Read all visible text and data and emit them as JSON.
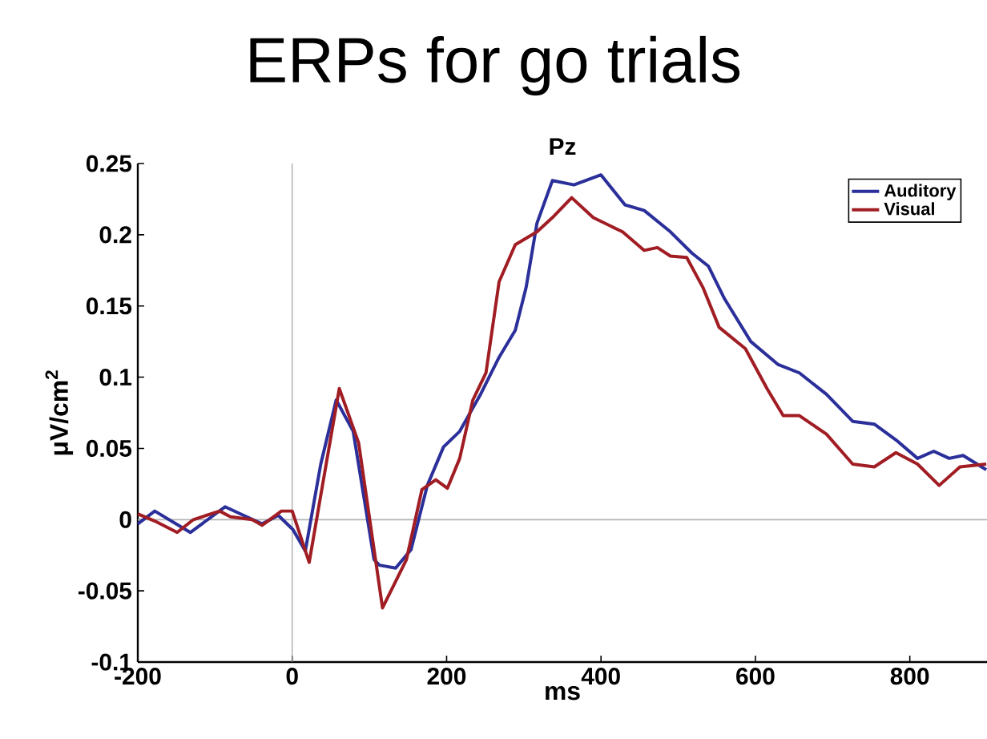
{
  "chart_data": {
    "type": "line",
    "title": "ERPs for go trials",
    "subtitle": "Pz",
    "xlabel": "ms",
    "ylabel": "μV/cm$^{2}$",
    "xlim": [
      -200,
      900
    ],
    "ylim": [
      -0.1,
      0.25
    ],
    "xticks": [
      -200,
      0,
      200,
      400,
      600,
      800
    ],
    "yticks": [
      -0.1,
      -0.05,
      0,
      0.05,
      0.1,
      0.15,
      0.2,
      0.25
    ],
    "legend": "top right",
    "grid": false,
    "marker": "none",
    "line_style": "solid",
    "ref_lines": [
      {
        "axis": "x",
        "value": 0,
        "color": "#a0a0a0"
      },
      {
        "axis": "y",
        "value": 0,
        "color": "#b4b4b4"
      }
    ],
    "series": [
      {
        "name": "Auditory",
        "color": "#2b2f9a",
        "x": [
          -200,
          -178,
          -132,
          -87,
          -59,
          -39,
          -18,
          1,
          17,
          37,
          57,
          79,
          106,
          113,
          134,
          154,
          175,
          196,
          217,
          244,
          268,
          289,
          303,
          317,
          337,
          365,
          400,
          431,
          456,
          490,
          518,
          539,
          560,
          594,
          629,
          657,
          692,
          726,
          754,
          782,
          810,
          831,
          851,
          869,
          899
        ],
        "values": [
          -0.003,
          0.006,
          -0.009,
          0.009,
          0.002,
          -0.003,
          0.003,
          -0.007,
          -0.022,
          0.039,
          0.084,
          0.062,
          -0.028,
          -0.032,
          -0.034,
          -0.021,
          0.024,
          0.051,
          0.062,
          0.088,
          0.114,
          0.133,
          0.163,
          0.208,
          0.238,
          0.235,
          0.242,
          0.221,
          0.217,
          0.202,
          0.187,
          0.178,
          0.155,
          0.125,
          0.109,
          0.103,
          0.088,
          0.069,
          0.067,
          0.056,
          0.043,
          0.048,
          0.043,
          0.045,
          0.035
        ]
      },
      {
        "name": "Visual",
        "color": "#a11d24",
        "x": [
          -200,
          -178,
          -149,
          -128,
          -94,
          -80,
          -52,
          -39,
          -14,
          0,
          22,
          44,
          61,
          86,
          117,
          148,
          168,
          186,
          201,
          217,
          234,
          251,
          268,
          289,
          317,
          337,
          362,
          390,
          428,
          456,
          473,
          490,
          511,
          532,
          553,
          587,
          615,
          636,
          657,
          692,
          726,
          754,
          782,
          810,
          838,
          865,
          899
        ],
        "values": [
          0.004,
          -0.001,
          -0.009,
          0.0,
          0.006,
          0.002,
          0.0,
          -0.004,
          0.006,
          0.006,
          -0.03,
          0.039,
          0.092,
          0.054,
          -0.062,
          -0.028,
          0.021,
          0.028,
          0.022,
          0.043,
          0.084,
          0.103,
          0.167,
          0.193,
          0.202,
          0.212,
          0.226,
          0.212,
          0.202,
          0.189,
          0.191,
          0.185,
          0.184,
          0.163,
          0.135,
          0.12,
          0.092,
          0.073,
          0.073,
          0.06,
          0.039,
          0.037,
          0.047,
          0.039,
          0.024,
          0.037,
          0.039
        ]
      }
    ]
  }
}
